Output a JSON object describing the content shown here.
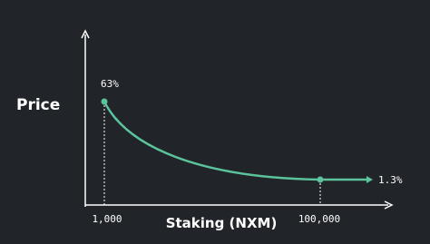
{
  "y_axis_label": "Price",
  "x_axis_label": "Staking (NXM)",
  "points": [
    {
      "x_label": "1,000",
      "y_label": "63%"
    },
    {
      "x_label": "100,000",
      "y_label": "1.3%"
    }
  ]
}
